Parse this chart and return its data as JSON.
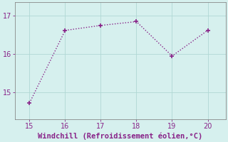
{
  "x": [
    15,
    16,
    17,
    18,
    19,
    20
  ],
  "y": [
    14.72,
    16.62,
    16.75,
    16.85,
    15.95,
    16.62
  ],
  "line_color": "#882288",
  "marker": "+",
  "marker_size": 5,
  "marker_lw": 1.2,
  "bg_color": "#d6f0ee",
  "grid_color": "#b0d8d4",
  "xlabel": "Windchill (Refroidissement éolien,°C)",
  "xlabel_color": "#882288",
  "xlabel_fontsize": 7.5,
  "tick_color": "#882288",
  "tick_fontsize": 7,
  "xlim": [
    14.6,
    20.5
  ],
  "ylim": [
    14.3,
    17.35
  ],
  "xticks": [
    15,
    16,
    17,
    18,
    19,
    20
  ],
  "yticks": [
    15,
    16,
    17
  ],
  "spine_color": "#888888",
  "line_width": 1.0
}
